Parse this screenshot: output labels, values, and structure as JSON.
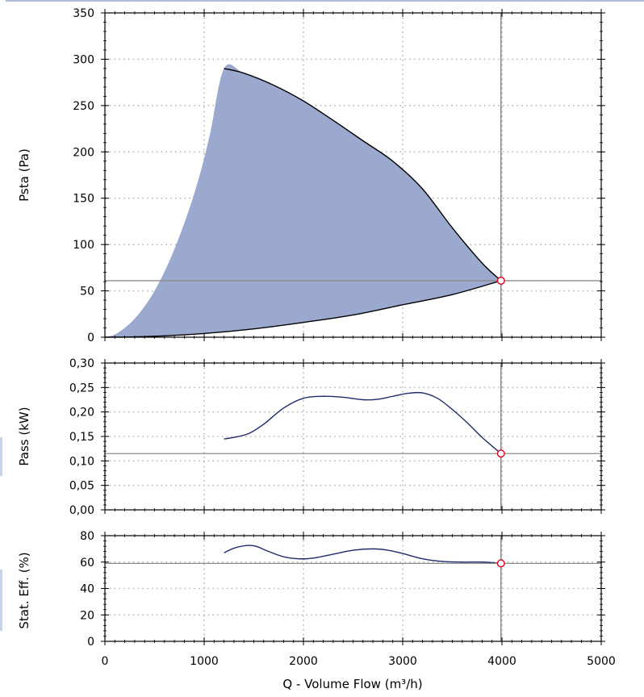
{
  "chart_data": [
    {
      "type": "area",
      "ylabel": "Psta (Pa)",
      "ylim": [
        0,
        350
      ],
      "yticks": [
        "0",
        "50",
        "100",
        "150",
        "200",
        "250",
        "300",
        "350"
      ],
      "envelope_upper": {
        "x": [
          0,
          120,
          300,
          500,
          700,
          900,
          1050,
          1200,
          1400,
          1700,
          2000,
          2300,
          2600,
          2900,
          3200,
          3500,
          3800,
          3990
        ],
        "y": [
          0,
          4,
          20,
          50,
          95,
          155,
          215,
          290,
          285,
          272,
          255,
          234,
          212,
          190,
          160,
          118,
          80,
          61
        ]
      },
      "envelope_lower": {
        "x": [
          0,
          200,
          500,
          1000,
          1500,
          2000,
          2500,
          3000,
          3500,
          3990
        ],
        "y": [
          0,
          0.2,
          1,
          4,
          9,
          16,
          24,
          35,
          46,
          61
        ]
      },
      "operating_point": {
        "x": 3990,
        "y": 61
      },
      "reference_line_y": 61,
      "colors": {
        "fill": "#9ba9ce",
        "line": "#000000",
        "point": "#e0001b"
      }
    },
    {
      "type": "line",
      "ylabel": "Pass (kW)",
      "ylim": [
        0,
        0.3
      ],
      "yticks": [
        "0,00",
        "0,05",
        "0,10",
        "0,15",
        "0,20",
        "0,25",
        "0,30"
      ],
      "series": [
        {
          "x": [
            1200,
            1300,
            1450,
            1600,
            1800,
            2000,
            2200,
            2400,
            2600,
            2750,
            2900,
            3050,
            3200,
            3350,
            3500,
            3650,
            3800,
            3990
          ],
          "y": [
            0.145,
            0.148,
            0.156,
            0.175,
            0.208,
            0.228,
            0.232,
            0.23,
            0.225,
            0.226,
            0.232,
            0.238,
            0.239,
            0.228,
            0.205,
            0.178,
            0.148,
            0.115
          ]
        }
      ],
      "operating_point": {
        "x": 3990,
        "y": 0.115
      },
      "reference_line_y": 0.115,
      "colors": {
        "line": "#1f2a6b",
        "point": "#e0001b"
      }
    },
    {
      "type": "line",
      "ylabel": "Stat. Eff. (%)",
      "ylim": [
        0,
        80
      ],
      "yticks": [
        "0",
        "20",
        "40",
        "60",
        "80"
      ],
      "series": [
        {
          "x": [
            1200,
            1300,
            1420,
            1520,
            1650,
            1800,
            1950,
            2100,
            2300,
            2500,
            2700,
            2850,
            3000,
            3200,
            3400,
            3600,
            3800,
            3990
          ],
          "y": [
            67,
            70.5,
            72.5,
            72,
            68,
            64,
            62.5,
            63,
            66,
            69,
            70,
            69,
            66.5,
            62.5,
            60.5,
            60,
            60,
            59
          ]
        }
      ],
      "operating_point": {
        "x": 3990,
        "y": 59
      },
      "reference_line_y": 59,
      "colors": {
        "line": "#1f2a6b",
        "point": "#e0001b"
      }
    }
  ],
  "x_axis": {
    "xlabel": "Q - Volume Flow (m³/h)",
    "xlim": [
      0,
      5000
    ],
    "xticks": [
      "0",
      "1000",
      "2000",
      "3000",
      "4000",
      "5000"
    ]
  },
  "grid": true
}
